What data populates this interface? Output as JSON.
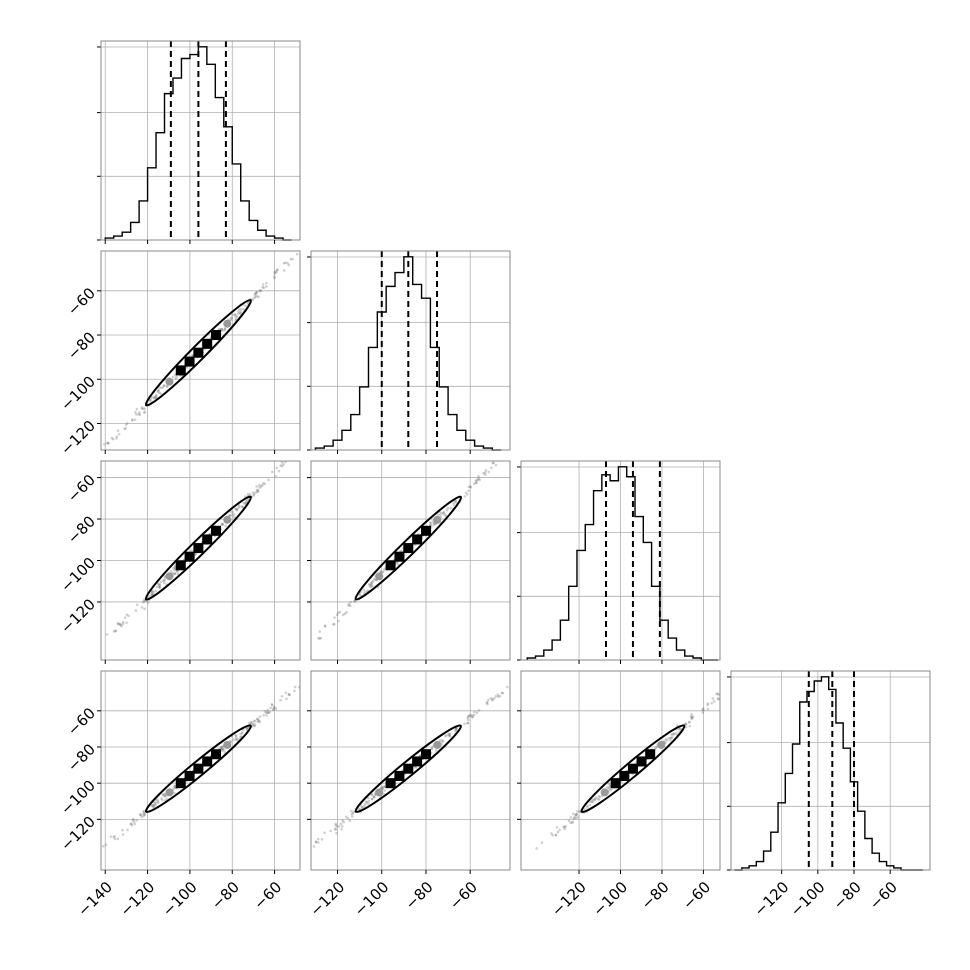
{
  "chart_data": {
    "type": "scatter",
    "kind": "corner-plot",
    "n_params": 4,
    "grid": true,
    "parameter_ranges": [
      [
        -142,
        -48
      ],
      [
        -132,
        -42
      ],
      [
        -148,
        -52
      ],
      [
        -148,
        -38
      ]
    ],
    "quantiles": [
      [
        -109,
        -96,
        -83
      ],
      [
        -100,
        -88,
        -75
      ],
      [
        -107,
        -94,
        -81
      ],
      [
        -105,
        -92,
        -80
      ]
    ],
    "x_ticks": [
      [
        -140,
        -120,
        -100,
        -80,
        -60
      ],
      [
        -120,
        -100,
        -80,
        -60
      ],
      [
        -120,
        -100,
        -80,
        -60
      ],
      [
        -120,
        -100,
        -80,
        -60
      ]
    ],
    "x_tick_labels": [
      [
        "−140",
        "−120",
        "−100",
        "−80",
        "−60"
      ],
      [
        "−120",
        "−100",
        "−80",
        "−60"
      ],
      [
        "−120",
        "−100",
        "−80",
        "−60"
      ],
      [
        "−120",
        "−100",
        "−80",
        "−60"
      ]
    ],
    "y_ticks": [
      -120,
      -100,
      -80,
      -60
    ],
    "y_tick_labels": [
      "−120",
      "−100",
      "−80",
      "−60"
    ],
    "histograms": [
      {
        "bins": [
          -140,
          -136,
          -132,
          -128,
          -124,
          -120,
          -116,
          -112,
          -108,
          -104,
          -100,
          -96,
          -92,
          -88,
          -84,
          -80,
          -76,
          -72,
          -68,
          -64,
          -60,
          -56,
          -52
        ],
        "counts": [
          1,
          2,
          4,
          9,
          20,
          37,
          55,
          75,
          83,
          93,
          95,
          99,
          90,
          73,
          58,
          39,
          20,
          10,
          5,
          2,
          1,
          0
        ]
      },
      {
        "bins": [
          -130,
          -126,
          -122,
          -118,
          -114,
          -110,
          -106,
          -102,
          -98,
          -94,
          -90,
          -86,
          -82,
          -78,
          -74,
          -70,
          -66,
          -62,
          -58,
          -54,
          -50,
          -46
        ],
        "counts": [
          1,
          2,
          5,
          10,
          18,
          32,
          52,
          70,
          83,
          90,
          98,
          84,
          77,
          52,
          32,
          18,
          10,
          5,
          2,
          1,
          0
        ]
      },
      {
        "bins": [
          -145,
          -141,
          -137,
          -133,
          -129,
          -125,
          -121,
          -117,
          -113,
          -109,
          -105,
          -101,
          -97,
          -93,
          -89,
          -85,
          -81,
          -77,
          -73,
          -69,
          -65,
          -61,
          -57,
          -53
        ],
        "counts": [
          1,
          2,
          5,
          10,
          20,
          37,
          55,
          68,
          85,
          93,
          90,
          97,
          92,
          72,
          59,
          37,
          20,
          11,
          5,
          2,
          1,
          0,
          0
        ]
      },
      {
        "bins": [
          -146,
          -142,
          -138,
          -134,
          -130,
          -126,
          -122,
          -118,
          -114,
          -110,
          -106,
          -102,
          -98,
          -94,
          -90,
          -86,
          -82,
          -78,
          -74,
          -70,
          -66,
          -62,
          -58,
          -54,
          -50,
          -46,
          -42
        ],
        "counts": [
          0,
          1,
          2,
          4,
          9,
          18,
          32,
          46,
          60,
          80,
          85,
          90,
          92,
          86,
          70,
          58,
          42,
          28,
          15,
          8,
          4,
          2,
          1,
          0,
          0,
          0
        ]
      }
    ]
  }
}
